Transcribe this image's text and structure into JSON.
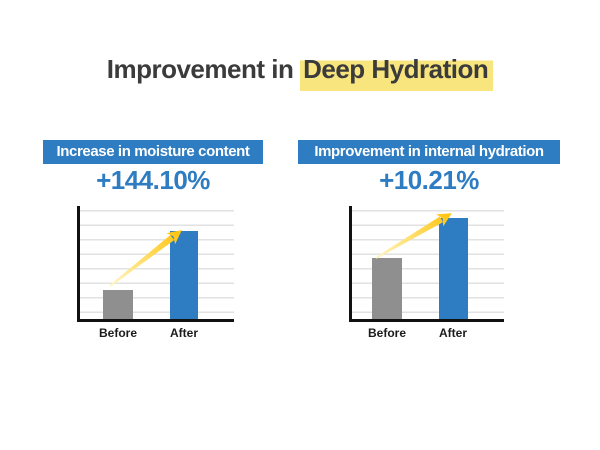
{
  "title": {
    "prefix": "Improvement in ",
    "highlight": "Deep Hydration"
  },
  "colors": {
    "blue": "#2e7cc1",
    "gray": "#8f8f8f",
    "highlight-yellow": "#f8e57e",
    "arrow-pale": "#fff6c3",
    "arrow-gold": "#ffc30b",
    "grid": "#e2e2e2",
    "axis": "#111111",
    "title-text": "#3b3b3b"
  },
  "chart_data": [
    {
      "type": "bar",
      "title": "Increase in moisture content",
      "stat": "+144.10%",
      "categories": [
        "Before",
        "After"
      ],
      "bar_heights_pct": [
        26,
        78
      ],
      "bar_colors": [
        "#8f8f8f",
        "#2e7cc1"
      ],
      "ylabel": "",
      "xlabel": "",
      "grid": "horizontal",
      "annotation": "yellow upward trend arrow from Before toward top of After bar"
    },
    {
      "type": "bar",
      "title": "Improvement in internal hydration",
      "stat": "+10.21%",
      "categories": [
        "Before",
        "After"
      ],
      "bar_heights_pct": [
        54,
        89
      ],
      "bar_colors": [
        "#8f8f8f",
        "#2e7cc1"
      ],
      "ylabel": "",
      "xlabel": "",
      "grid": "horizontal",
      "annotation": "yellow upward trend arrow from top of Before bar toward top of After bar"
    }
  ]
}
